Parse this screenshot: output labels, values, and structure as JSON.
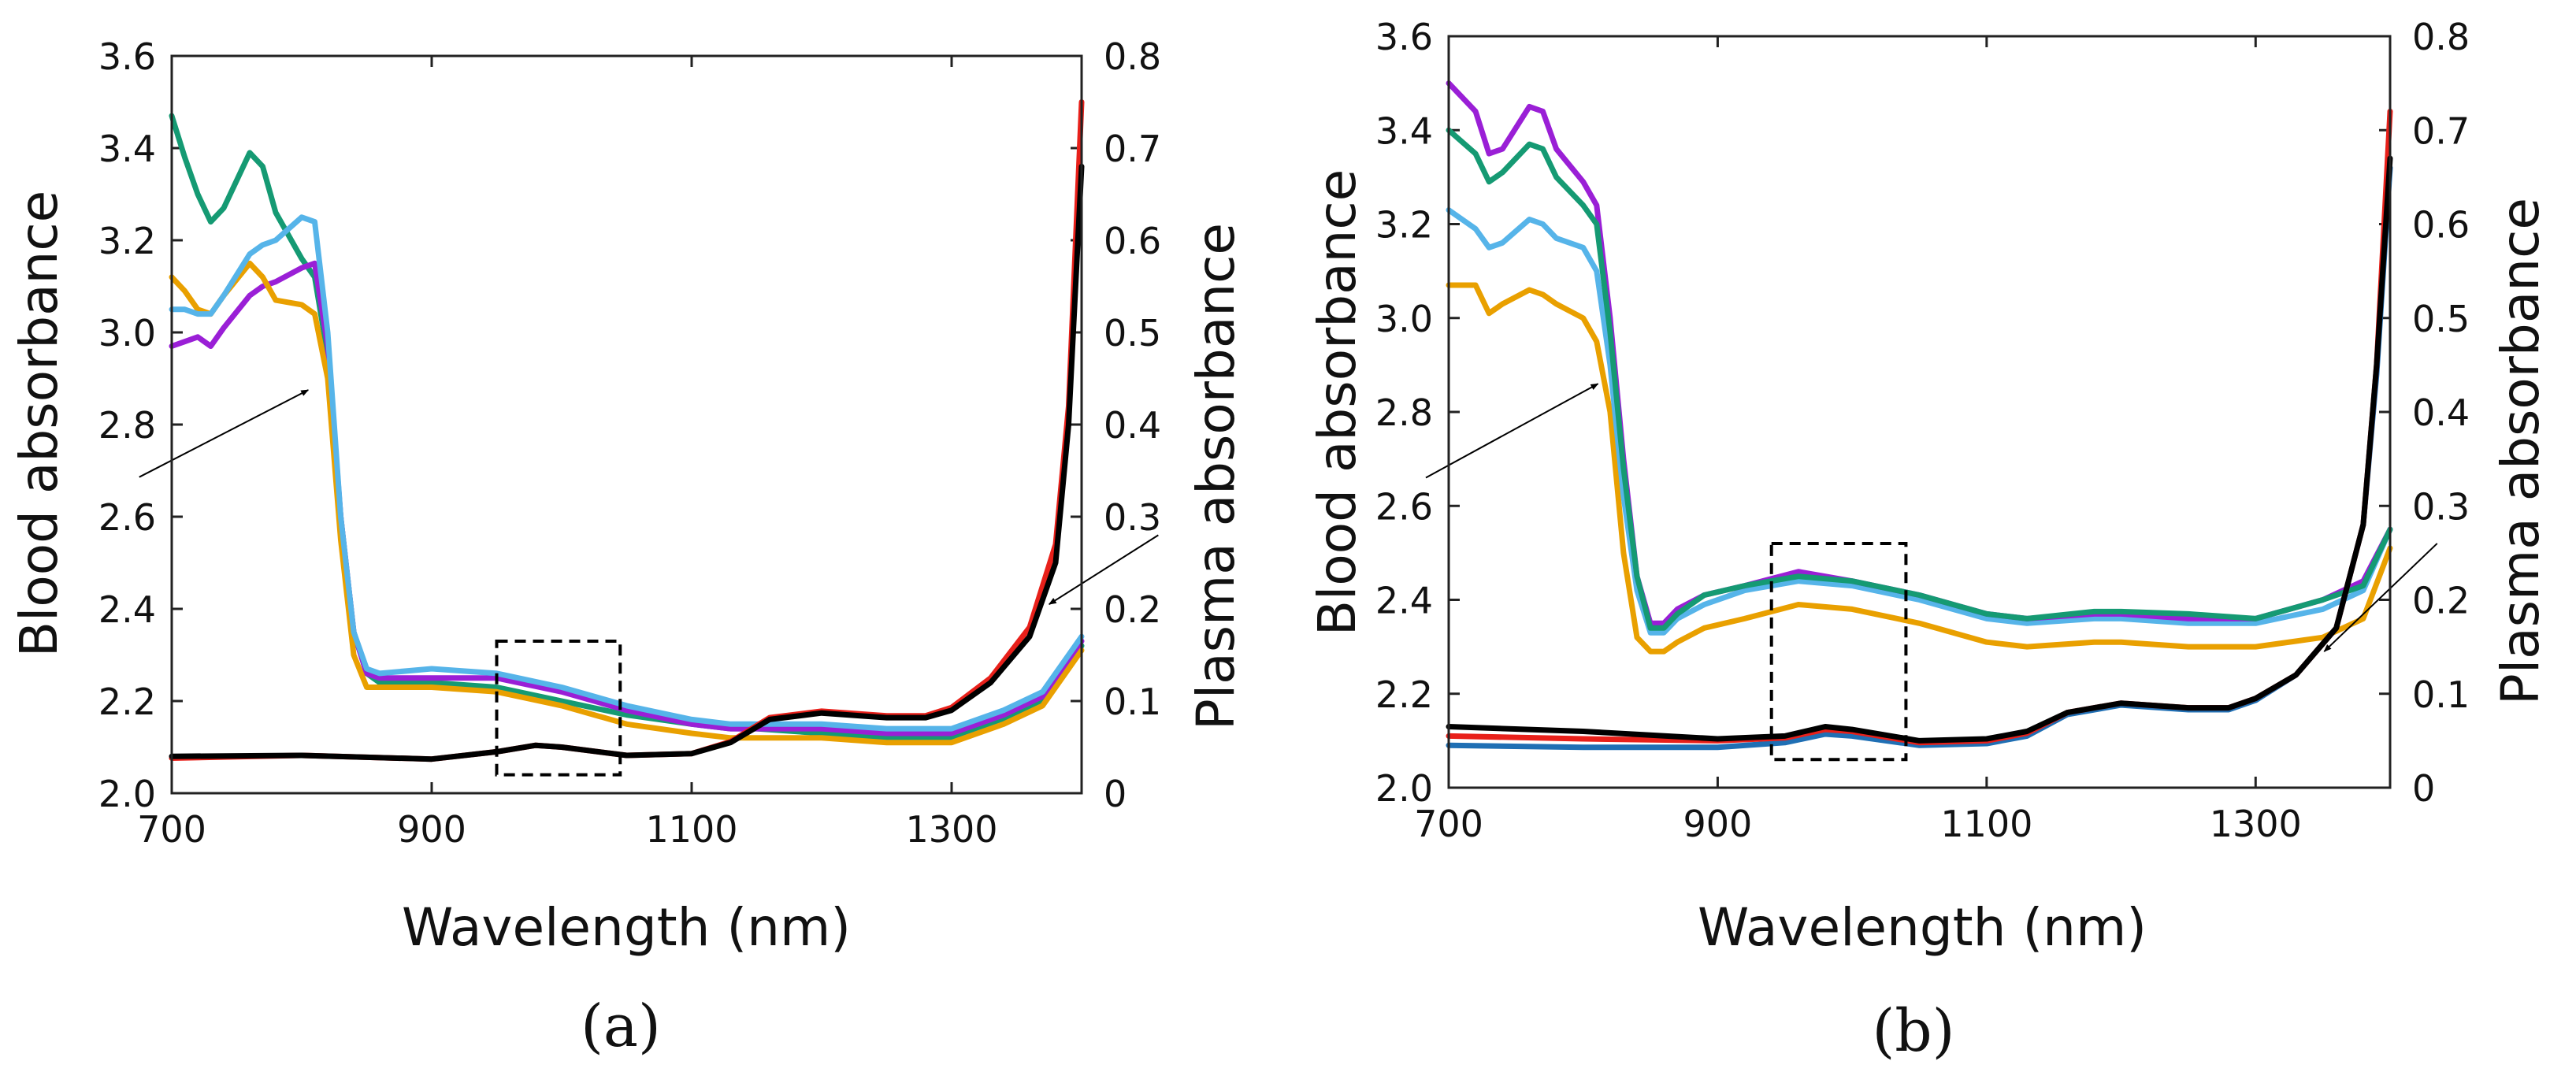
{
  "chart_data": [
    {
      "type": "line",
      "panel_label": "(a)",
      "xlabel": "Wavelength (nm)",
      "ylabel": "Blood absorbance",
      "y2label": "Plasma absorbance",
      "xlim": [
        700,
        1400
      ],
      "ylim": [
        2.0,
        3.6
      ],
      "y2lim": [
        0,
        0.8
      ],
      "xticks": [
        "700",
        "900",
        "1100",
        "1300"
      ],
      "xtick_values": [
        700,
        900,
        1100,
        1300
      ],
      "yticks": [
        "2.0",
        "2.2",
        "2.4",
        "2.6",
        "2.8",
        "3.0",
        "3.2",
        "3.4",
        "3.6"
      ],
      "ytick_values": [
        2.0,
        2.2,
        2.4,
        2.6,
        2.8,
        3.0,
        3.2,
        3.4,
        3.6
      ],
      "y2ticks": [
        "0",
        "0.1",
        "0.2",
        "0.3",
        "0.4",
        "0.5",
        "0.6",
        "0.7",
        "0.8"
      ],
      "y2tick_values": [
        0,
        0.1,
        0.2,
        0.3,
        0.4,
        0.5,
        0.6,
        0.7,
        0.8
      ],
      "blood_x": [
        700,
        710,
        720,
        730,
        740,
        760,
        770,
        780,
        800,
        810,
        820,
        830,
        840,
        850,
        860,
        900,
        950,
        1000,
        1050,
        1100,
        1130,
        1150,
        1200,
        1250,
        1300,
        1340,
        1370,
        1400
      ],
      "blood_series": [
        {
          "name": "blood-green",
          "color": "#159A73",
          "values": [
            3.47,
            3.38,
            3.3,
            3.24,
            3.27,
            3.39,
            3.36,
            3.26,
            3.16,
            3.12,
            2.95,
            2.6,
            2.35,
            2.26,
            2.24,
            2.24,
            2.23,
            2.2,
            2.17,
            2.15,
            2.14,
            2.14,
            2.13,
            2.12,
            2.12,
            2.16,
            2.2,
            2.32
          ]
        },
        {
          "name": "blood-purple",
          "color": "#9A1FD6",
          "values": [
            2.97,
            2.98,
            2.99,
            2.97,
            3.01,
            3.08,
            3.1,
            3.11,
            3.14,
            3.15,
            2.97,
            2.6,
            2.35,
            2.26,
            2.25,
            2.25,
            2.25,
            2.22,
            2.18,
            2.15,
            2.14,
            2.14,
            2.14,
            2.13,
            2.13,
            2.17,
            2.21,
            2.33
          ]
        },
        {
          "name": "blood-orange",
          "color": "#E9A000",
          "values": [
            3.12,
            3.09,
            3.05,
            3.04,
            3.08,
            3.15,
            3.12,
            3.07,
            3.06,
            3.04,
            2.9,
            2.55,
            2.3,
            2.23,
            2.23,
            2.23,
            2.22,
            2.19,
            2.15,
            2.13,
            2.12,
            2.12,
            2.12,
            2.11,
            2.11,
            2.15,
            2.19,
            2.31
          ]
        },
        {
          "name": "blood-lightblue",
          "color": "#56B4E9",
          "values": [
            3.05,
            3.05,
            3.04,
            3.04,
            3.08,
            3.17,
            3.19,
            3.2,
            3.25,
            3.24,
            3.0,
            2.6,
            2.35,
            2.27,
            2.26,
            2.27,
            2.26,
            2.23,
            2.19,
            2.16,
            2.15,
            2.15,
            2.15,
            2.14,
            2.14,
            2.18,
            2.22,
            2.34
          ]
        }
      ],
      "plasma_x": [
        700,
        800,
        900,
        950,
        980,
        1000,
        1050,
        1100,
        1130,
        1160,
        1200,
        1250,
        1280,
        1300,
        1330,
        1360,
        1380,
        1390,
        1400
      ],
      "plasma_series": [
        {
          "name": "plasma-red",
          "color": "#E8201A",
          "values": [
            0.038,
            0.041,
            0.037,
            0.045,
            0.052,
            0.05,
            0.041,
            0.043,
            0.056,
            0.082,
            0.089,
            0.084,
            0.084,
            0.093,
            0.125,
            0.18,
            0.27,
            0.42,
            0.75
          ]
        },
        {
          "name": "plasma-black",
          "color": "#000000",
          "values": [
            0.04,
            0.041,
            0.037,
            0.045,
            0.052,
            0.05,
            0.041,
            0.043,
            0.055,
            0.08,
            0.087,
            0.082,
            0.082,
            0.09,
            0.12,
            0.17,
            0.25,
            0.4,
            0.68
          ]
        }
      ],
      "annotations": {
        "dashed_box": {
          "x": [
            950,
            1045
          ],
          "y": [
            2.04,
            2.33
          ]
        },
        "arrows": [
          {
            "from": [
              675,
              2.686
            ],
            "to": [
              805,
              2.875
            ],
            "axis": "blood"
          },
          {
            "from": [
              1459,
              2.56
            ],
            "to": [
              1375,
              2.41
            ],
            "axis": "blood"
          }
        ]
      }
    },
    {
      "type": "line",
      "panel_label": "(b)",
      "xlabel": "Wavelength (nm)",
      "ylabel": "Blood absorbance",
      "y2label": "Plasma absorbance",
      "xlim": [
        700,
        1400
      ],
      "ylim": [
        2.0,
        3.6
      ],
      "y2lim": [
        0,
        0.8
      ],
      "xticks": [
        "700",
        "900",
        "1100",
        "1300"
      ],
      "xtick_values": [
        700,
        900,
        1100,
        1300
      ],
      "yticks": [
        "2.0",
        "2.2",
        "2.4",
        "2.6",
        "2.8",
        "3.0",
        "3.2",
        "3.4",
        "3.6"
      ],
      "ytick_values": [
        2.0,
        2.2,
        2.4,
        2.6,
        2.8,
        3.0,
        3.2,
        3.4,
        3.6
      ],
      "y2ticks": [
        "0",
        "0.1",
        "0.2",
        "0.3",
        "0.4",
        "0.5",
        "0.6",
        "0.7",
        "0.8"
      ],
      "y2tick_values": [
        0,
        0.1,
        0.2,
        0.3,
        0.4,
        0.5,
        0.6,
        0.7,
        0.8
      ],
      "blood_x": [
        700,
        720,
        730,
        740,
        760,
        770,
        780,
        800,
        810,
        820,
        830,
        840,
        850,
        860,
        870,
        890,
        920,
        960,
        1000,
        1050,
        1100,
        1130,
        1180,
        1200,
        1250,
        1300,
        1350,
        1380,
        1400
      ],
      "blood_series": [
        {
          "name": "blood-orange",
          "color": "#E9A000",
          "values": [
            3.07,
            3.07,
            3.01,
            3.03,
            3.06,
            3.05,
            3.03,
            3.0,
            2.95,
            2.8,
            2.5,
            2.32,
            2.29,
            2.29,
            2.31,
            2.34,
            2.36,
            2.39,
            2.38,
            2.35,
            2.31,
            2.3,
            2.31,
            2.31,
            2.3,
            2.3,
            2.32,
            2.36,
            2.51
          ]
        },
        {
          "name": "blood-lightblue",
          "color": "#56B4E9",
          "values": [
            3.23,
            3.19,
            3.15,
            3.16,
            3.21,
            3.2,
            3.17,
            3.15,
            3.1,
            2.9,
            2.62,
            2.42,
            2.33,
            2.33,
            2.36,
            2.39,
            2.42,
            2.44,
            2.43,
            2.4,
            2.36,
            2.35,
            2.36,
            2.36,
            2.35,
            2.35,
            2.38,
            2.42,
            2.55
          ]
        },
        {
          "name": "blood-purple",
          "color": "#9A1FD6",
          "values": [
            3.5,
            3.44,
            3.35,
            3.36,
            3.45,
            3.44,
            3.36,
            3.29,
            3.24,
            3.0,
            2.7,
            2.45,
            2.35,
            2.35,
            2.38,
            2.41,
            2.43,
            2.46,
            2.44,
            2.41,
            2.37,
            2.36,
            2.37,
            2.37,
            2.36,
            2.36,
            2.4,
            2.44,
            2.55
          ]
        },
        {
          "name": "blood-green",
          "color": "#159A73",
          "values": [
            3.4,
            3.35,
            3.29,
            3.31,
            3.37,
            3.36,
            3.3,
            3.24,
            3.2,
            2.97,
            2.68,
            2.45,
            2.34,
            2.34,
            2.37,
            2.41,
            2.43,
            2.45,
            2.44,
            2.41,
            2.37,
            2.36,
            2.375,
            2.375,
            2.37,
            2.36,
            2.4,
            2.43,
            2.55
          ]
        }
      ],
      "plasma_x": [
        700,
        800,
        900,
        950,
        980,
        1000,
        1050,
        1100,
        1130,
        1160,
        1200,
        1250,
        1280,
        1300,
        1330,
        1360,
        1380,
        1390,
        1400
      ],
      "plasma_series": [
        {
          "name": "plasma-blue",
          "color": "#1F6FB4",
          "values": [
            0.045,
            0.043,
            0.043,
            0.048,
            0.057,
            0.055,
            0.045,
            0.047,
            0.055,
            0.078,
            0.088,
            0.083,
            0.083,
            0.093,
            0.12,
            0.17,
            0.28,
            0.44,
            0.66
          ]
        },
        {
          "name": "plasma-red",
          "color": "#E8201A",
          "values": [
            0.055,
            0.052,
            0.05,
            0.053,
            0.062,
            0.06,
            0.048,
            0.05,
            0.058,
            0.08,
            0.09,
            0.085,
            0.085,
            0.095,
            0.12,
            0.17,
            0.28,
            0.45,
            0.72
          ]
        },
        {
          "name": "plasma-black",
          "color": "#000000",
          "values": [
            0.065,
            0.06,
            0.052,
            0.055,
            0.065,
            0.062,
            0.05,
            0.052,
            0.06,
            0.08,
            0.09,
            0.085,
            0.085,
            0.095,
            0.12,
            0.17,
            0.28,
            0.45,
            0.67
          ]
        }
      ],
      "annotations": {
        "dashed_box": {
          "x": [
            940,
            1040
          ],
          "y": [
            2.06,
            2.52
          ]
        },
        "arrows": [
          {
            "from": [
              683,
              2.66
            ],
            "to": [
              811,
              2.86
            ],
            "axis": "blood"
          },
          {
            "from": [
              1435,
              2.52
            ],
            "to": [
              1351,
              2.29
            ],
            "axis": "blood"
          }
        ]
      }
    }
  ]
}
